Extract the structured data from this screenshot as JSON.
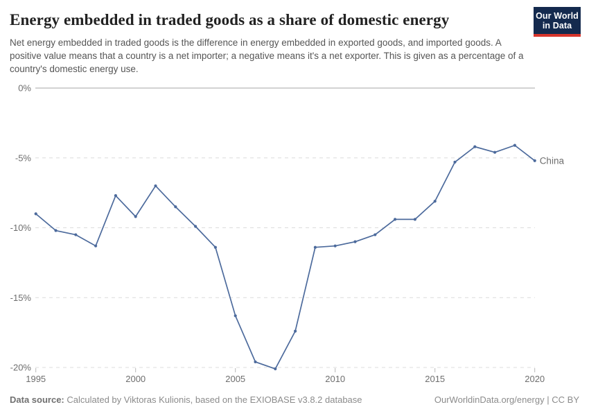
{
  "logo": {
    "line1": "Our World",
    "line2": "in Data",
    "bg_color": "#142a4e",
    "stripe_color": "#d7352c"
  },
  "chart_data": {
    "type": "line",
    "title": "Energy embedded in traded goods as a share of domestic energy",
    "subtitle": "Net energy embedded in traded goods is the difference in energy embedded in exported goods, and imported goods. A positive value means that a country is a net importer; a negative means it's a net exporter. This is given as a percentage of a country's domestic energy use.",
    "x": [
      1995,
      1996,
      1997,
      1998,
      1999,
      2000,
      2001,
      2002,
      2003,
      2004,
      2005,
      2006,
      2007,
      2008,
      2009,
      2010,
      2011,
      2012,
      2013,
      2014,
      2015,
      2016,
      2017,
      2018,
      2019,
      2020
    ],
    "series": [
      {
        "name": "China",
        "color": "#4c6a9c",
        "values": [
          -9.0,
          -10.2,
          -10.5,
          -11.3,
          -7.7,
          -9.2,
          -7.0,
          -8.5,
          -9.9,
          -11.4,
          -16.3,
          -19.6,
          -20.1,
          -17.4,
          -11.4,
          -11.3,
          -11.0,
          -10.5,
          -9.4,
          -9.4,
          -8.1,
          -5.3,
          -4.2,
          -4.6,
          -4.1,
          -5.2
        ]
      }
    ],
    "xlabel": "",
    "ylabel": "",
    "ylim": [
      -20.5,
      0
    ],
    "xlim": [
      1995,
      2020
    ],
    "yticks": [
      {
        "value": 0,
        "label": "0%"
      },
      {
        "value": -5,
        "label": "-5%"
      },
      {
        "value": -10,
        "label": "-10%"
      },
      {
        "value": -15,
        "label": "-15%"
      },
      {
        "value": -20,
        "label": "-20%"
      }
    ],
    "xticks": [
      {
        "value": 1995,
        "label": "1995"
      },
      {
        "value": 2000,
        "label": "2000"
      },
      {
        "value": 2005,
        "label": "2005"
      },
      {
        "value": 2010,
        "label": "2010"
      },
      {
        "value": 2015,
        "label": "2015"
      },
      {
        "value": 2020,
        "label": "2020"
      }
    ],
    "grid": "horizontal; zero line solid gray, negative lines dashed light gray",
    "legend": "series label at line end",
    "zero_line_color": "#a6a6a6",
    "grid_color": "#dcdcdc",
    "tick_label_color": "#6e6e6e"
  },
  "footer": {
    "source_label": "Data source:",
    "source_text": "Calculated by Viktoras Kulionis, based on the EXIOBASE v3.8.2 database",
    "link_text": "OurWorldinData.org/energy",
    "separator": "|",
    "license_text": "CC BY"
  }
}
